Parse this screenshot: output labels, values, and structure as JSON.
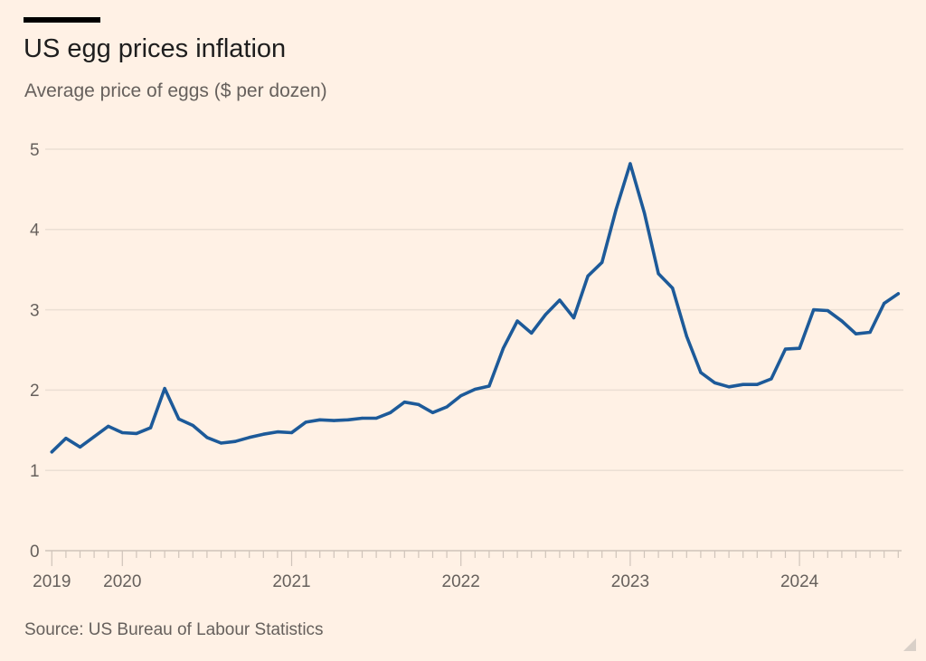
{
  "header": {
    "title": "US egg prices inflation",
    "subtitle": "Average price of eggs ($ per dozen)"
  },
  "footer": {
    "source": "Source: US Bureau of Labour Statistics"
  },
  "colors": {
    "background": "#fff1e5",
    "series_line": "#1d5a99",
    "title_rule": "#000000",
    "gridline": "#ebdfd4",
    "axis": "#cfc4ba",
    "tick_label": "#66605c"
  },
  "chart_data": {
    "type": "line",
    "title": "US egg prices inflation",
    "subtitle": "Average price of eggs ($ per dozen)",
    "xlabel": "",
    "ylabel": "",
    "source": "Source: US Bureau of Labour Statistics",
    "x": [
      "2019-08",
      "2019-09",
      "2019-10",
      "2019-11",
      "2019-12",
      "2020-01",
      "2020-02",
      "2020-03",
      "2020-04",
      "2020-05",
      "2020-06",
      "2020-07",
      "2020-08",
      "2020-09",
      "2020-10",
      "2020-11",
      "2020-12",
      "2021-01",
      "2021-02",
      "2021-03",
      "2021-04",
      "2021-05",
      "2021-06",
      "2021-07",
      "2021-08",
      "2021-09",
      "2021-10",
      "2021-11",
      "2021-12",
      "2022-01",
      "2022-02",
      "2022-03",
      "2022-04",
      "2022-05",
      "2022-06",
      "2022-07",
      "2022-08",
      "2022-09",
      "2022-10",
      "2022-11",
      "2022-12",
      "2023-01",
      "2023-02",
      "2023-03",
      "2023-04",
      "2023-05",
      "2023-06",
      "2023-07",
      "2023-08",
      "2023-09",
      "2023-10",
      "2023-11",
      "2023-12",
      "2024-01",
      "2024-02",
      "2024-03",
      "2024-04",
      "2024-05",
      "2024-06",
      "2024-07",
      "2024-08"
    ],
    "xticks": {
      "minor": "monthly",
      "major": [
        {
          "at": "2019-08",
          "label": "2019"
        },
        {
          "at": "2020-01",
          "label": "2020"
        },
        {
          "at": "2021-01",
          "label": "2021"
        },
        {
          "at": "2022-01",
          "label": "2022"
        },
        {
          "at": "2023-01",
          "label": "2023"
        },
        {
          "at": "2024-01",
          "label": "2024"
        }
      ]
    },
    "yticks": [
      0,
      1,
      2,
      3,
      4,
      5
    ],
    "ytick_labels": [
      "0",
      "1",
      "2",
      "3",
      "4",
      "5"
    ],
    "ylim": [
      0,
      5
    ],
    "grid": "horizontal",
    "legend": "none",
    "series": [
      {
        "name": "Average price of eggs ($ per dozen)",
        "color": "#1d5a99",
        "values": [
          1.23,
          1.4,
          1.29,
          1.42,
          1.55,
          1.47,
          1.46,
          1.53,
          2.02,
          1.64,
          1.56,
          1.41,
          1.34,
          1.36,
          1.41,
          1.45,
          1.48,
          1.47,
          1.6,
          1.63,
          1.62,
          1.63,
          1.65,
          1.65,
          1.72,
          1.85,
          1.82,
          1.72,
          1.79,
          1.93,
          2.01,
          2.05,
          2.52,
          2.86,
          2.71,
          2.94,
          3.12,
          2.9,
          3.42,
          3.59,
          4.25,
          4.82,
          4.21,
          3.45,
          3.27,
          2.67,
          2.22,
          2.09,
          2.04,
          2.07,
          2.07,
          2.14,
          2.51,
          2.52,
          3.0,
          2.99,
          2.86,
          2.7,
          2.72,
          3.08,
          3.2
        ]
      }
    ]
  }
}
